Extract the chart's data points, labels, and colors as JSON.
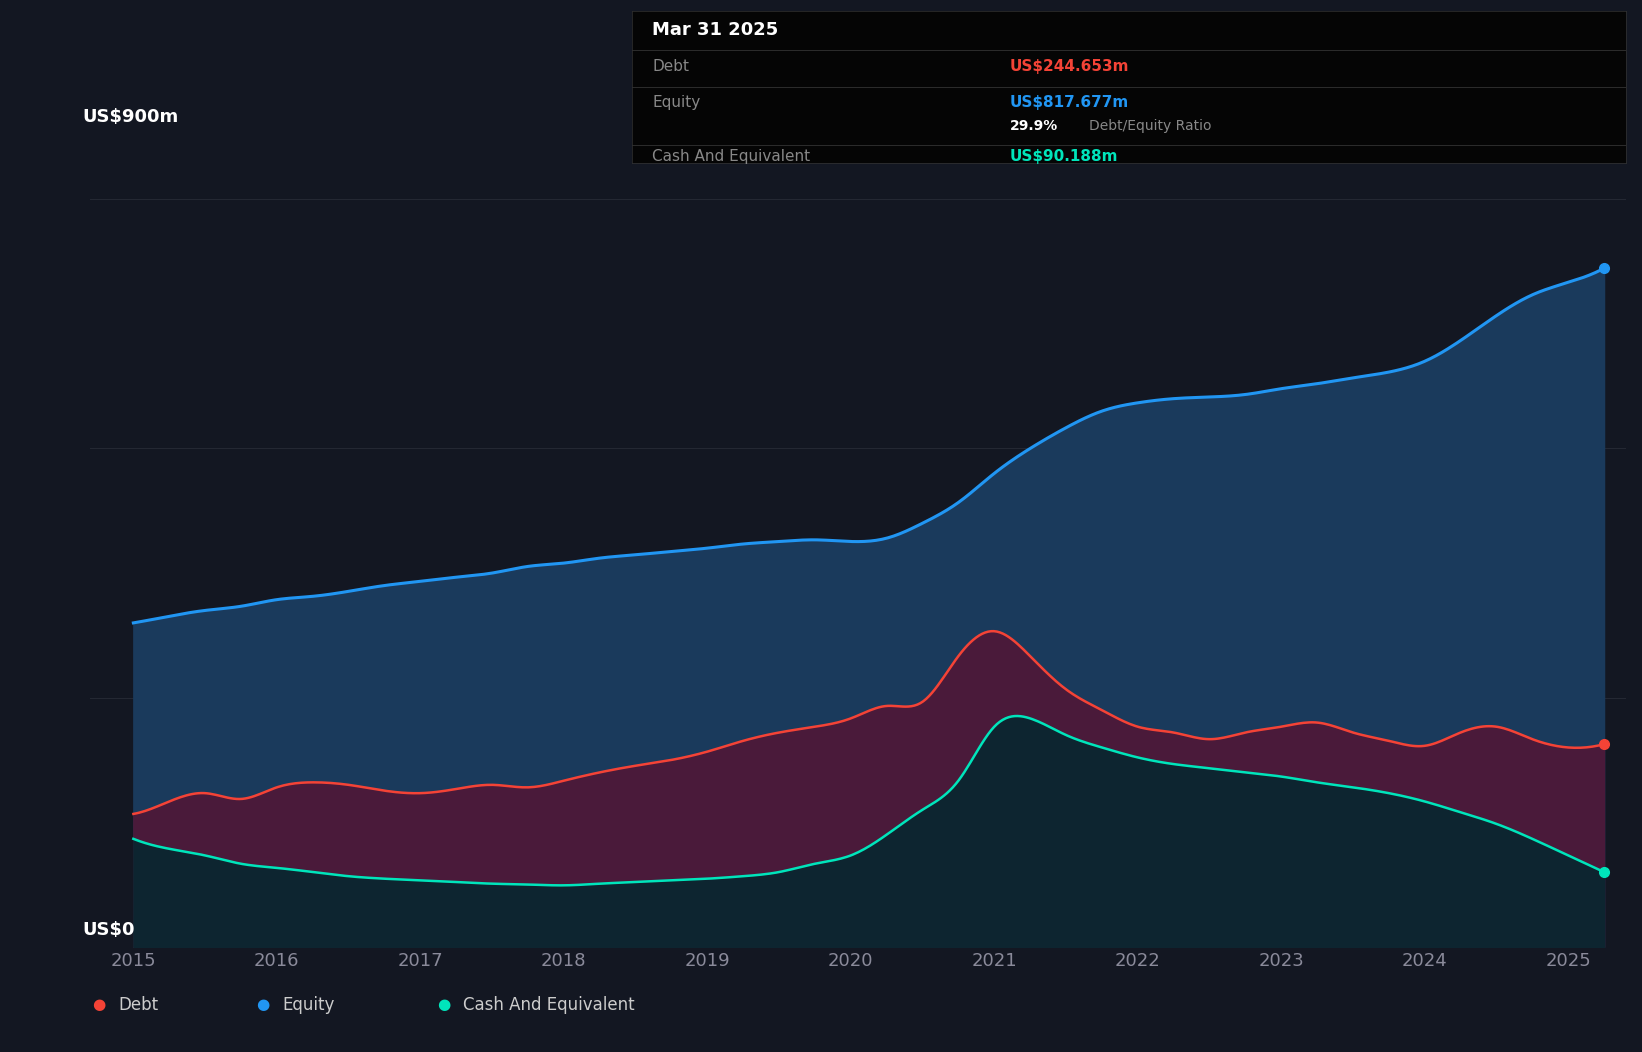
{
  "bg_color": "#131722",
  "plot_bg_color": "#161b2e",
  "grid_color": "#2a2e39",
  "equity_color": "#2196f3",
  "debt_color": "#f44336",
  "cash_color": "#00e5bb",
  "equity_fill": "#1a3a5c",
  "debt_fill": "#4a1a3a",
  "cash_fill": "#0d2530",
  "ylabel_top": "US$900m",
  "ylabel_bottom": "US$0",
  "tooltip_title": "Mar 31 2025",
  "tooltip_debt_label": "Debt",
  "tooltip_debt_value": "US$244.653m",
  "tooltip_equity_label": "Equity",
  "tooltip_equity_value": "US$817.677m",
  "tooltip_ratio_pct": "29.9%",
  "tooltip_ratio_text": "Debt/Equity Ratio",
  "tooltip_cash_label": "Cash And Equivalent",
  "tooltip_cash_value": "US$90.188m",
  "legend_items": [
    "Debt",
    "Equity",
    "Cash And Equivalent"
  ],
  "ylim": [
    0,
    950
  ],
  "xlim_start": 2014.7,
  "xlim_end": 2025.4,
  "t_points": [
    2015.0,
    2015.25,
    2015.5,
    2015.75,
    2016.0,
    2016.25,
    2016.5,
    2016.75,
    2017.0,
    2017.25,
    2017.5,
    2017.75,
    2018.0,
    2018.25,
    2018.5,
    2018.75,
    2019.0,
    2019.25,
    2019.5,
    2019.75,
    2020.0,
    2020.25,
    2020.5,
    2020.75,
    2021.0,
    2021.25,
    2021.5,
    2021.75,
    2022.0,
    2022.25,
    2022.5,
    2022.75,
    2023.0,
    2023.25,
    2023.5,
    2023.75,
    2024.0,
    2024.25,
    2024.5,
    2024.75,
    2025.0,
    2025.25
  ],
  "equity_vals": [
    390,
    398,
    405,
    410,
    418,
    422,
    428,
    435,
    440,
    445,
    450,
    458,
    462,
    468,
    472,
    476,
    480,
    485,
    488,
    490,
    488,
    492,
    510,
    535,
    570,
    600,
    625,
    645,
    655,
    660,
    662,
    665,
    672,
    678,
    685,
    692,
    705,
    730,
    760,
    785,
    800,
    817
  ],
  "debt_vals": [
    160,
    175,
    185,
    178,
    192,
    198,
    195,
    188,
    185,
    190,
    195,
    192,
    200,
    210,
    218,
    225,
    235,
    248,
    258,
    265,
    275,
    290,
    295,
    350,
    380,
    350,
    310,
    285,
    265,
    258,
    250,
    258,
    265,
    270,
    258,
    248,
    242,
    258,
    265,
    250,
    240,
    244
  ],
  "cash_vals": [
    130,
    118,
    110,
    100,
    95,
    90,
    85,
    82,
    80,
    78,
    76,
    75,
    74,
    76,
    78,
    80,
    82,
    85,
    90,
    100,
    110,
    135,
    165,
    200,
    265,
    275,
    255,
    240,
    228,
    220,
    215,
    210,
    205,
    198,
    192,
    185,
    175,
    162,
    148,
    130,
    110,
    90
  ]
}
